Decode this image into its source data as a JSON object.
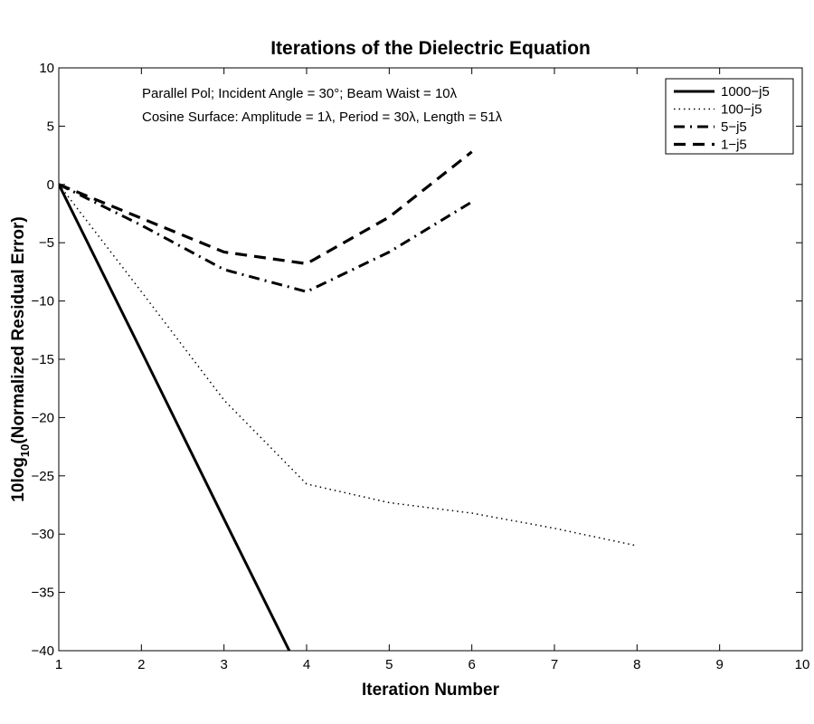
{
  "chart_data": {
    "type": "line",
    "title": "Iterations of the Dielectric Equation",
    "xlabel": "Iteration Number",
    "ylabel_main": "10log",
    "ylabel_sub": "10",
    "ylabel_rest": "(Normalized Residual Error)",
    "xlim": [
      1,
      10
    ],
    "ylim": [
      -40,
      10
    ],
    "xticks": [
      1,
      2,
      3,
      4,
      5,
      6,
      7,
      8,
      9,
      10
    ],
    "yticks": [
      10,
      5,
      0,
      -5,
      -10,
      -15,
      -20,
      -25,
      -30,
      -35,
      -40
    ],
    "grid": false,
    "legend_position": "top-right",
    "annotations": [
      "Parallel Pol; Incident Angle = 30°; Beam Waist = 10λ",
      "Cosine Surface: Amplitude = 1λ, Period = 30λ, Length = 51λ"
    ],
    "series": [
      {
        "name": "1000−j5",
        "style": "solid",
        "x": [
          1,
          2,
          3,
          4
        ],
        "y": [
          0,
          -14.3,
          -28.7,
          -43
        ]
      },
      {
        "name": "100−j5",
        "style": "dotted",
        "x": [
          1,
          2,
          3,
          4,
          5,
          6,
          7,
          8
        ],
        "y": [
          0,
          -9.2,
          -18.5,
          -25.7,
          -27.3,
          -28.2,
          -29.5,
          -31
        ]
      },
      {
        "name": "5−j5",
        "style": "dashdot",
        "x": [
          1,
          2,
          3,
          4,
          5,
          6
        ],
        "y": [
          0,
          -3.5,
          -7.3,
          -9.2,
          -5.8,
          -1.5
        ]
      },
      {
        "name": "1−j5",
        "style": "dashed",
        "x": [
          1,
          2,
          3,
          4,
          5,
          6
        ],
        "y": [
          0,
          -2.9,
          -5.8,
          -6.8,
          -2.8,
          2.8
        ]
      }
    ],
    "line_color": "#000000"
  }
}
